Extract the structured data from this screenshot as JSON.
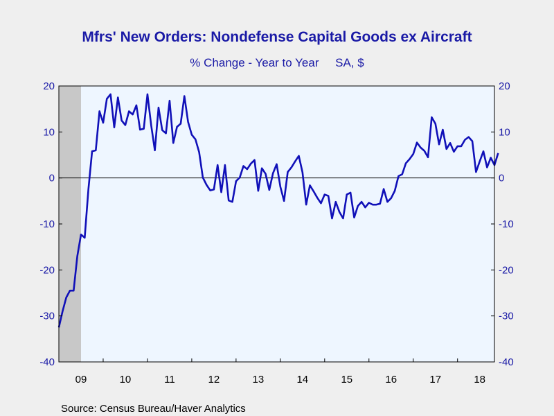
{
  "chart_data": {
    "type": "line",
    "title": "Mfrs' New Orders: Nondefense Capital Goods ex Aircraft",
    "subtitle": "% Change - Year to Year     SA, $",
    "source": "Source:  Census Bureau/Haver Analytics",
    "ylim": [
      -40,
      20
    ],
    "yticks": [
      20,
      10,
      0,
      -10,
      -20,
      -30,
      -40
    ],
    "xlim": [
      2009.0,
      2018.833
    ],
    "x_tick_labels": [
      "09",
      "10",
      "11",
      "12",
      "13",
      "14",
      "15",
      "16",
      "17",
      "18"
    ],
    "recession_shading": [
      2009.0,
      2009.5
    ],
    "grid": false,
    "zero_line": true,
    "colors": {
      "line": "#1010b8",
      "plot_background": "#eef6ff",
      "recession": "#c8c8c8",
      "text": "#1a1aa6",
      "page_background": "#efefef"
    },
    "series": [
      {
        "x_start": 2009.0,
        "x_step_months": 1,
        "values": [
          -32.5,
          -29,
          -26,
          -24.5,
          -24.5,
          -17,
          -12.3,
          -13,
          -2.5,
          5.8,
          6,
          14.5,
          12,
          17.2,
          18.2,
          11,
          17.5,
          12.5,
          11.5,
          14.5,
          13.8,
          15.8,
          10.5,
          10.7,
          18.2,
          11.5,
          6,
          15.3,
          10.4,
          9.7,
          16.8,
          7.6,
          11.1,
          11.8,
          17.8,
          12.2,
          9.4,
          8.4,
          5.6,
          0.1,
          -1.5,
          -2.7,
          -2.5,
          2.8,
          -3.1,
          2.8,
          -4.9,
          -5.2,
          -0.7,
          0.1,
          2.6,
          1.9,
          3.1,
          3.9,
          -2.8,
          2.1,
          0.9,
          -2.6,
          1,
          3,
          -1.9,
          -5,
          1.3,
          2.3,
          3.6,
          4.8,
          1.2,
          -5.8,
          -1.6,
          -2.9,
          -4.3,
          -5.5,
          -3.6,
          -3.9,
          -8.8,
          -5.2,
          -7.4,
          -8.8,
          -3.6,
          -3.2,
          -8.6,
          -6.1,
          -5.2,
          -6.4,
          -5.4,
          -5.8,
          -5.8,
          -5.6,
          -2.4,
          -5.2,
          -4.4,
          -2.8,
          0.4,
          0.8,
          3.2,
          4.1,
          5.2,
          7.7,
          6.6,
          5.9,
          4.5,
          13.2,
          11.8,
          7.3,
          10.5,
          6.3,
          7.6,
          5.7,
          6.9,
          6.9,
          8.3,
          8.9,
          8.0,
          1.3,
          3.6,
          5.8,
          2.3,
          4.4,
          2.8,
          5.4
        ]
      }
    ]
  }
}
